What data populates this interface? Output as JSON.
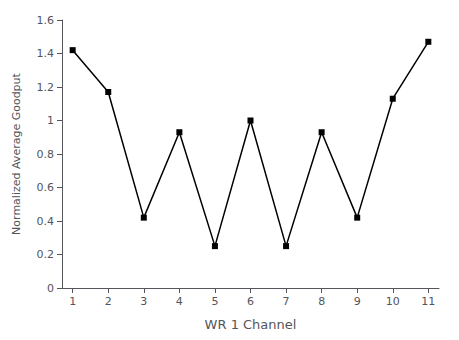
{
  "chart_data": {
    "type": "line",
    "x": [
      1,
      2,
      3,
      4,
      5,
      6,
      7,
      8,
      9,
      10,
      11
    ],
    "values": [
      1.42,
      1.17,
      0.42,
      0.93,
      0.25,
      1.0,
      0.25,
      0.93,
      0.42,
      1.13,
      1.47
    ],
    "xlabel": "WR 1 Channel",
    "ylabel": "Normalized Average Goodput",
    "xlim": [
      0.7,
      11.3
    ],
    "ylim": [
      0,
      1.6
    ],
    "xticks": [
      1,
      2,
      3,
      4,
      5,
      6,
      7,
      8,
      9,
      10,
      11
    ],
    "yticks": [
      0,
      0.2,
      0.4,
      0.6,
      0.8,
      1,
      1.2,
      1.4,
      1.6
    ],
    "color": "#000000",
    "marker": "square",
    "grid": false
  }
}
